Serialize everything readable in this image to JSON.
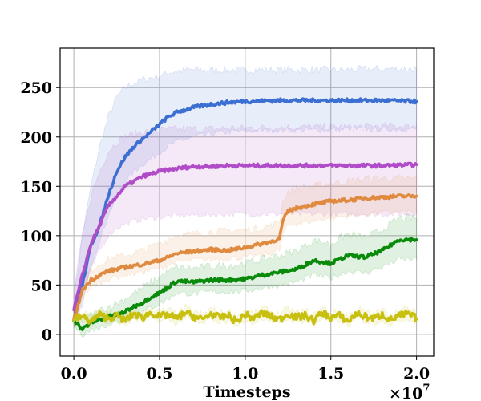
{
  "chart_data": {
    "type": "line",
    "title": "",
    "xlabel": "Timesteps",
    "ylabel": "",
    "x_multiplier": "×10^7",
    "xlim": [
      -0.08,
      2.1
    ],
    "ylim": [
      -22,
      290
    ],
    "xticks": [
      0.0,
      0.5,
      1.0,
      1.5,
      2.0
    ],
    "xtick_labels": [
      "0.0",
      "0.5",
      "1.0",
      "1.5",
      "2.0"
    ],
    "yticks": [
      0,
      50,
      100,
      150,
      200,
      250
    ],
    "ytick_labels": [
      "0",
      "50",
      "100",
      "150",
      "200",
      "250"
    ],
    "grid": true,
    "legend": null,
    "series": [
      {
        "color": "#3b6fd1",
        "x": [
          0,
          0.05,
          0.1,
          0.15,
          0.2,
          0.25,
          0.3,
          0.35,
          0.4,
          0.45,
          0.5,
          0.55,
          0.6,
          0.7,
          0.8,
          0.9,
          1.0,
          1.2,
          1.4,
          1.6,
          1.8,
          2.0
        ],
        "y": [
          15,
          50,
          90,
          110,
          140,
          165,
          180,
          190,
          198,
          205,
          213,
          220,
          225,
          230,
          233,
          235,
          236,
          237,
          237,
          237,
          237,
          236
        ],
        "band_upper": [
          35,
          100,
          150,
          190,
          220,
          240,
          250,
          255,
          258,
          260,
          262,
          265,
          267,
          268,
          268,
          268,
          268,
          268,
          268,
          268,
          269,
          269
        ],
        "band_lower": [
          5,
          30,
          70,
          95,
          120,
          140,
          155,
          165,
          172,
          178,
          185,
          190,
          195,
          200,
          203,
          205,
          206,
          207,
          207,
          208,
          208,
          208
        ]
      },
      {
        "color": "#b04cc8",
        "x": [
          0,
          0.05,
          0.1,
          0.15,
          0.2,
          0.25,
          0.3,
          0.35,
          0.4,
          0.5,
          0.6,
          0.7,
          0.8,
          0.9,
          1.0,
          1.2,
          1.4,
          1.6,
          1.8,
          2.0
        ],
        "y": [
          25,
          60,
          92,
          110,
          130,
          140,
          150,
          155,
          160,
          165,
          168,
          170,
          170,
          171,
          171,
          171,
          171,
          171,
          171,
          172
        ],
        "band_upper": [
          45,
          100,
          140,
          165,
          185,
          195,
          200,
          203,
          205,
          207,
          208,
          208,
          208,
          209,
          209,
          210,
          210,
          210,
          211,
          211
        ],
        "band_lower": [
          10,
          40,
          65,
          85,
          100,
          108,
          112,
          115,
          117,
          119,
          120,
          121,
          121,
          122,
          122,
          122,
          122,
          122,
          122,
          122
        ]
      },
      {
        "color": "#e08a3f",
        "x": [
          0,
          0.05,
          0.1,
          0.15,
          0.2,
          0.3,
          0.4,
          0.5,
          0.55,
          0.6,
          0.7,
          0.8,
          0.9,
          1.0,
          1.1,
          1.15,
          1.2,
          1.22,
          1.25,
          1.3,
          1.4,
          1.5,
          1.6,
          1.7,
          1.8,
          1.9,
          2.0
        ],
        "y": [
          15,
          45,
          55,
          60,
          64,
          68,
          71,
          75,
          78,
          82,
          84,
          86,
          85,
          88,
          92,
          94,
          97,
          115,
          125,
          128,
          132,
          135,
          136,
          138,
          139,
          140,
          140
        ],
        "band_upper": [
          25,
          55,
          65,
          72,
          76,
          80,
          85,
          92,
          97,
          100,
          102,
          104,
          105,
          106,
          108,
          110,
          115,
          135,
          145,
          148,
          150,
          153,
          155,
          158,
          158,
          158,
          158
        ],
        "band_lower": [
          5,
          38,
          48,
          52,
          56,
          60,
          63,
          67,
          70,
          73,
          75,
          76,
          77,
          78,
          80,
          82,
          85,
          100,
          110,
          112,
          115,
          118,
          120,
          122,
          123,
          124,
          124
        ]
      },
      {
        "color": "#0a8a0a",
        "x": [
          0,
          0.05,
          0.1,
          0.15,
          0.2,
          0.25,
          0.3,
          0.35,
          0.4,
          0.45,
          0.5,
          0.55,
          0.6,
          0.7,
          0.8,
          0.9,
          1.0,
          1.1,
          1.2,
          1.3,
          1.4,
          1.5,
          1.6,
          1.7,
          1.8,
          1.9,
          2.0
        ],
        "y": [
          15,
          5,
          12,
          15,
          18,
          20,
          23,
          28,
          32,
          38,
          42,
          48,
          54,
          53,
          55,
          55,
          56,
          60,
          63,
          66,
          75,
          72,
          80,
          78,
          85,
          96,
          96
        ],
        "band_upper": [
          25,
          15,
          20,
          24,
          28,
          32,
          36,
          42,
          47,
          53,
          58,
          63,
          68,
          67,
          69,
          70,
          72,
          76,
          80,
          85,
          95,
          92,
          102,
          98,
          106,
          118,
          118
        ],
        "band_lower": [
          8,
          0,
          4,
          7,
          10,
          12,
          14,
          18,
          22,
          27,
          31,
          36,
          42,
          41,
          43,
          43,
          44,
          47,
          50,
          53,
          60,
          57,
          64,
          62,
          68,
          76,
          76
        ]
      },
      {
        "color": "#c8c010",
        "x": [
          0,
          0.05,
          0.1,
          0.15,
          0.2,
          0.25,
          0.3,
          0.35,
          0.4,
          0.45,
          0.5,
          0.55,
          0.6,
          0.65,
          0.7,
          0.75,
          0.8,
          0.85,
          0.9,
          0.95,
          1.0,
          1.05,
          1.1,
          1.15,
          1.2,
          1.25,
          1.3,
          1.35,
          1.4,
          1.45,
          1.5,
          1.55,
          1.6,
          1.65,
          1.7,
          1.75,
          1.8,
          1.85,
          1.9,
          1.95,
          2.0
        ],
        "y": [
          15,
          18,
          13,
          20,
          16,
          19,
          14,
          21,
          17,
          22,
          18,
          20,
          16,
          22,
          18,
          15,
          21,
          17,
          19,
          13,
          20,
          16,
          22,
          18,
          15,
          21,
          17,
          19,
          14,
          22,
          17,
          19,
          13,
          21,
          18,
          16,
          20,
          15,
          19,
          21,
          16
        ],
        "band_upper": [
          20,
          23,
          18,
          25,
          21,
          24,
          19,
          26,
          22,
          27,
          23,
          25,
          21,
          27,
          23,
          20,
          26,
          22,
          24,
          18,
          25,
          21,
          27,
          23,
          20,
          26,
          22,
          24,
          19,
          27,
          22,
          24,
          18,
          26,
          23,
          21,
          25,
          20,
          24,
          26,
          21
        ],
        "band_lower": [
          10,
          13,
          8,
          15,
          11,
          14,
          9,
          16,
          12,
          17,
          13,
          15,
          11,
          17,
          13,
          10,
          16,
          12,
          14,
          8,
          15,
          11,
          17,
          13,
          10,
          16,
          12,
          14,
          9,
          17,
          12,
          14,
          8,
          16,
          13,
          11,
          15,
          10,
          14,
          16,
          11
        ]
      }
    ]
  }
}
